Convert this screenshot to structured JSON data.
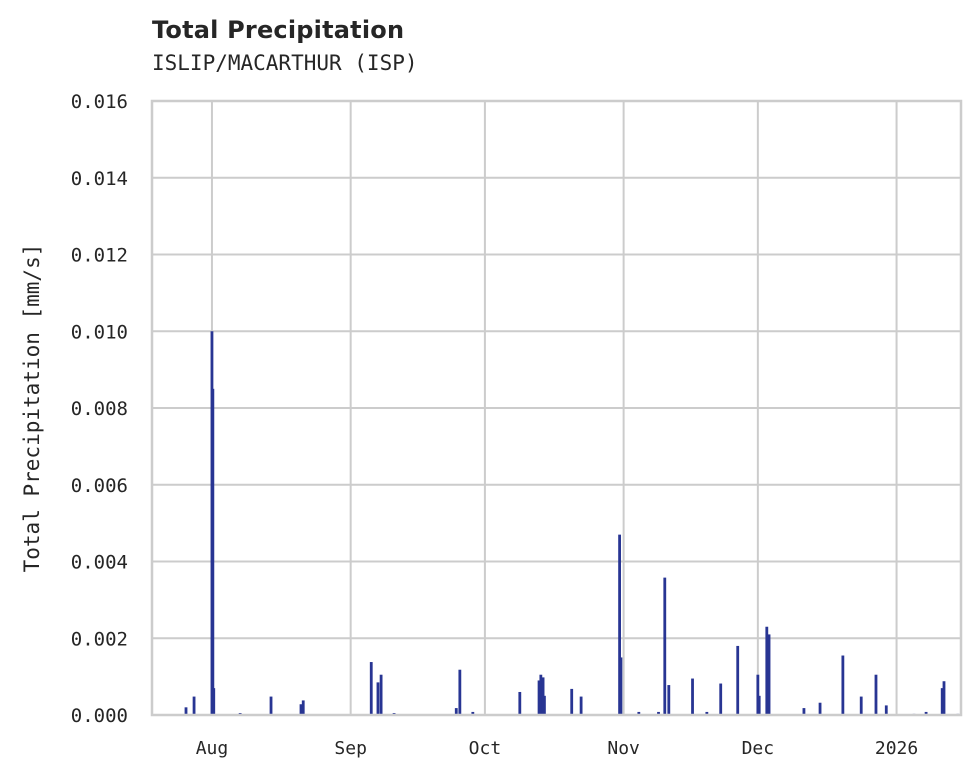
{
  "chart_data": {
    "type": "bar",
    "title": "Total Precipitation",
    "subtitle": "ISLIP/MACARTHUR (ISP)",
    "xlabel": "",
    "ylabel": "Total Precipitation [mm/s]",
    "ylim": [
      0,
      0.016
    ],
    "yticks": [
      "0.000",
      "0.002",
      "0.004",
      "0.006",
      "0.008",
      "0.010",
      "0.012",
      "0.014",
      "0.016"
    ],
    "xticks": [
      {
        "label": "Aug",
        "day": 0
      },
      {
        "label": "Sep",
        "day": 31
      },
      {
        "label": "Oct",
        "day": 61
      },
      {
        "label": "Nov",
        "day": 92
      },
      {
        "label": "Dec",
        "day": 122
      },
      {
        "label": "2026",
        "day": 153
      }
    ],
    "xlim_days": [
      -13.4,
      167.4
    ],
    "x_unit": "days since Aug 1 2025",
    "grid": true,
    "series": [
      {
        "name": "Total Precipitation",
        "color": "#283593",
        "points": [
          {
            "day": -5.8,
            "value": 0.0002
          },
          {
            "day": -4.0,
            "value": 0.00048
          },
          {
            "day": 0.0,
            "value": 0.01
          },
          {
            "day": 0.2,
            "value": 0.0085
          },
          {
            "day": 0.4,
            "value": 0.0007
          },
          {
            "day": 6.3,
            "value": 5e-05
          },
          {
            "day": 13.2,
            "value": 0.00048
          },
          {
            "day": 19.9,
            "value": 0.00028
          },
          {
            "day": 20.4,
            "value": 0.00038
          },
          {
            "day": 35.6,
            "value": 0.00138
          },
          {
            "day": 37.1,
            "value": 0.00085
          },
          {
            "day": 37.8,
            "value": 0.00105
          },
          {
            "day": 40.7,
            "value": 5e-05
          },
          {
            "day": 54.6,
            "value": 0.00018
          },
          {
            "day": 55.4,
            "value": 0.00118
          },
          {
            "day": 58.3,
            "value": 8e-05
          },
          {
            "day": 68.8,
            "value": 0.0006
          },
          {
            "day": 73.1,
            "value": 0.0009
          },
          {
            "day": 73.5,
            "value": 0.00105
          },
          {
            "day": 74.0,
            "value": 0.00098
          },
          {
            "day": 74.3,
            "value": 0.0005
          },
          {
            "day": 80.4,
            "value": 0.00068
          },
          {
            "day": 82.5,
            "value": 0.00048
          },
          {
            "day": 91.1,
            "value": 0.0047
          },
          {
            "day": 91.4,
            "value": 0.0015
          },
          {
            "day": 95.4,
            "value": 8e-05
          },
          {
            "day": 99.8,
            "value": 8e-05
          },
          {
            "day": 101.2,
            "value": 0.00358
          },
          {
            "day": 102.1,
            "value": 0.00078
          },
          {
            "day": 107.4,
            "value": 0.00095
          },
          {
            "day": 110.6,
            "value": 8e-05
          },
          {
            "day": 113.7,
            "value": 0.00082
          },
          {
            "day": 117.5,
            "value": 0.0018
          },
          {
            "day": 122.0,
            "value": 0.00105
          },
          {
            "day": 122.3,
            "value": 0.0005
          },
          {
            "day": 124.0,
            "value": 0.0023
          },
          {
            "day": 124.5,
            "value": 0.0021
          },
          {
            "day": 132.3,
            "value": 0.00018
          },
          {
            "day": 135.9,
            "value": 0.00032
          },
          {
            "day": 141.0,
            "value": 0.00155
          },
          {
            "day": 145.1,
            "value": 0.00048
          },
          {
            "day": 148.4,
            "value": 0.00105
          },
          {
            "day": 150.7,
            "value": 0.00025
          },
          {
            "day": 156.9,
            "value": 3e-05
          },
          {
            "day": 159.6,
            "value": 8e-05
          },
          {
            "day": 163.2,
            "value": 0.0007
          },
          {
            "day": 163.6,
            "value": 0.00088
          },
          {
            "day": 166.7,
            "value": 3e-05
          }
        ]
      }
    ]
  }
}
